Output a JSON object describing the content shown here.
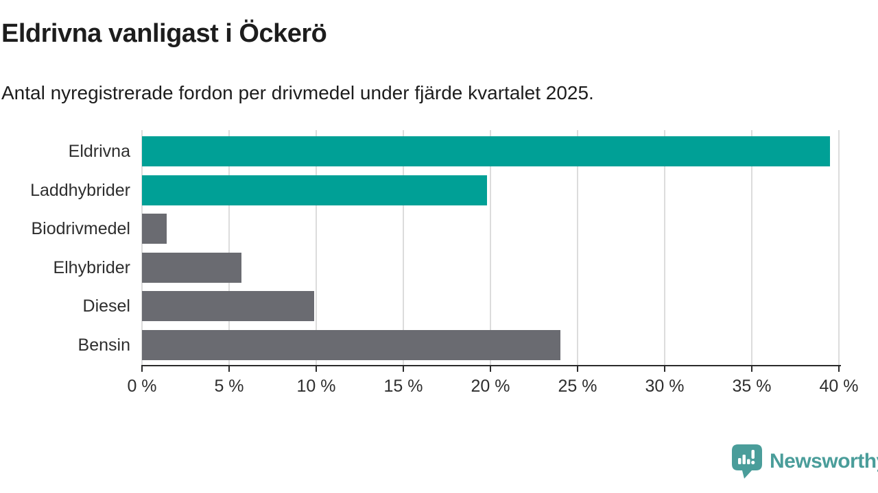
{
  "header": {
    "title": "Eldrivna vanligast i Öckerö",
    "subtitle": "Antal nyregistrerade fordon per drivmedel under fjärde kvartalet 2025."
  },
  "chart_data": {
    "type": "bar",
    "orientation": "horizontal",
    "title": "Eldrivna vanligast i Öckerö",
    "subtitle": "Antal nyregistrerade fordon per drivmedel under fjärde kvartalet 2025.",
    "categories": [
      "Eldrivna",
      "Laddhybrider",
      "Biodrivmedel",
      "Elhybrider",
      "Diesel",
      "Bensin"
    ],
    "values": [
      39.5,
      19.8,
      1.4,
      5.7,
      9.9,
      24.0
    ],
    "unit": "%",
    "xlim": [
      0,
      40
    ],
    "x_ticks": [
      0,
      5,
      10,
      15,
      20,
      25,
      30,
      35,
      40
    ],
    "x_tick_labels": [
      "0 %",
      "5 %",
      "10 %",
      "15 %",
      "20 %",
      "25 %",
      "30 %",
      "35 %",
      "40 %"
    ],
    "grid": "vertical",
    "legend": "none",
    "bar_colors": [
      "#00A096",
      "#00A096",
      "#6A6B71",
      "#6A6B71",
      "#6A6B71",
      "#6A6B71"
    ]
  },
  "colors": {
    "highlight_teal": "#00A096",
    "neutral_gray": "#6A6B71",
    "gridline": "#DCDCDC",
    "axis": "#2A2A2A",
    "text_dark": "#1D1D1D",
    "label_gray": "#2E2E2E"
  },
  "footer": {
    "brand": "Newsworthy",
    "brand_color": "#4A9D9A",
    "logo_glyph_color": "#FFFFFF"
  }
}
